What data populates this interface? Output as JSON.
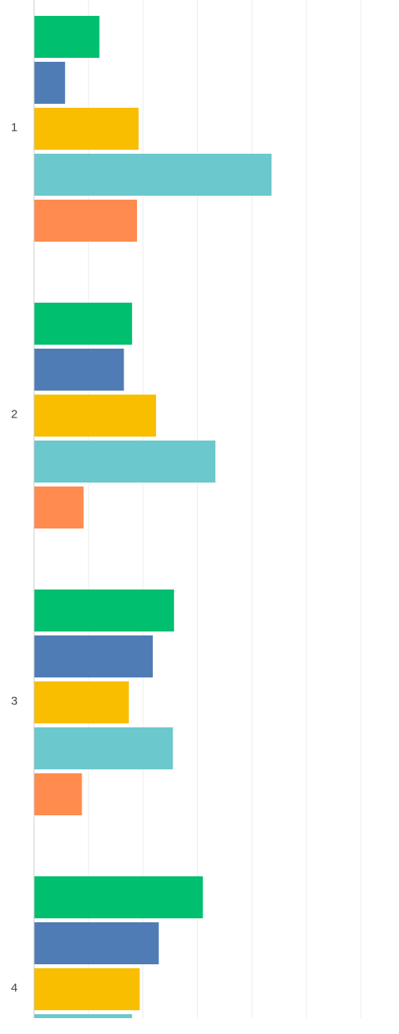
{
  "chart_data": {
    "type": "bar",
    "orientation": "horizontal",
    "categories": [
      "1",
      "2",
      "3",
      "4"
    ],
    "series": [
      {
        "color": "#00BF6F",
        "values": [
          12,
          18,
          25.7,
          31
        ]
      },
      {
        "color": "#507CB6",
        "values": [
          5.7,
          16.5,
          21.8,
          22.9
        ]
      },
      {
        "color": "#F9BE00",
        "values": [
          19.2,
          22.4,
          17.4,
          19.4
        ]
      },
      {
        "color": "#6BC8CD",
        "values": [
          43.6,
          33.3,
          25.5,
          18
        ]
      },
      {
        "color": "#FF8B4F",
        "values": [
          18.9,
          9.1,
          8.8,
          null
        ]
      }
    ],
    "xlim": [
      0,
      60
    ],
    "grid": true,
    "legend": "none"
  }
}
